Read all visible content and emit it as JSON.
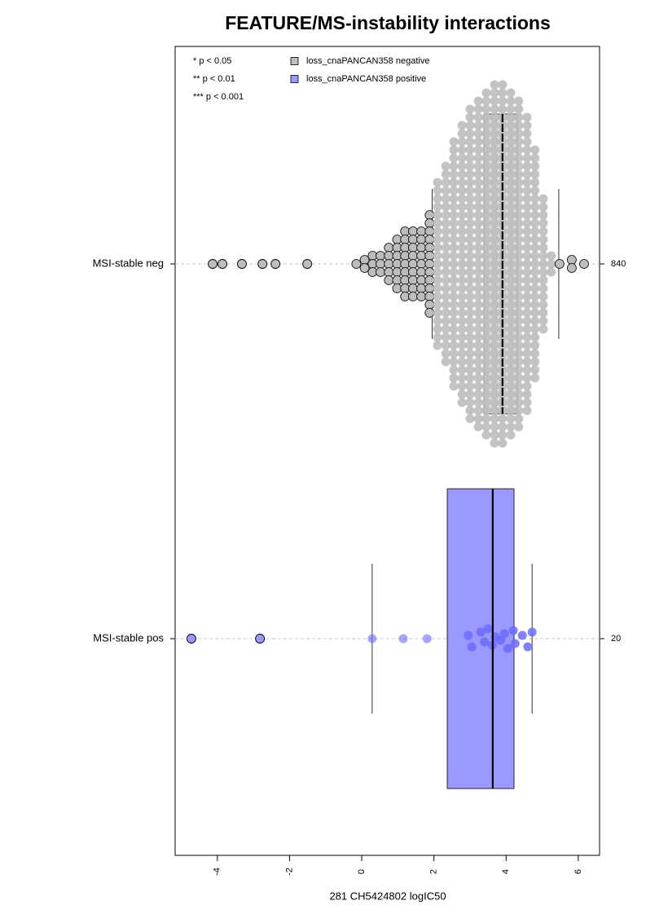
{
  "chart_data": {
    "type": "box",
    "title": "FEATURE/MS-instability interactions",
    "x_label": "281 CH5424802 logIC50",
    "categories": [
      "MSI-stable neg",
      "MSI-stable pos"
    ],
    "counts": [
      840,
      20
    ],
    "annotations": [
      "* p < 0.05",
      "** p < 0.01",
      "*** p < 0.001"
    ],
    "legend": "top-left",
    "xlim": [
      -5.17,
      6.59
    ],
    "xticks": [
      -4,
      -2,
      0,
      2,
      4,
      6
    ],
    "grid": true,
    "series": [
      {
        "name": "loss_cnaPANCAN358 negative",
        "color": "#bdbdbd",
        "box": {
          "whisker_low": 1.95,
          "q1": 3.39,
          "median": 3.9,
          "q3": 4.31,
          "whisker_high": 5.46
        },
        "outliers": [
          -4.13,
          -3.86,
          -3.32,
          -2.75,
          -2.39,
          -1.51
        ],
        "swarm": {
          "x": [
            -0.15,
            0.08,
            0.3,
            0.52,
            0.75,
            0.98,
            1.2,
            1.42,
            1.65,
            1.88,
            2.1,
            2.33,
            2.55,
            2.78,
            3.0,
            3.23,
            3.45,
            3.68,
            3.9,
            4.13,
            4.35,
            4.58,
            4.8,
            5.03,
            5.25,
            5.48,
            5.82,
            6.16
          ],
          "counts": [
            1,
            2,
            3,
            3,
            5,
            7,
            9,
            9,
            9,
            13,
            21,
            25,
            31,
            35,
            39,
            41,
            43,
            45,
            45,
            43,
            41,
            37,
            29,
            17,
            3,
            1,
            2,
            1
          ]
        }
      },
      {
        "name": "loss_cnaPANCAN358 positive",
        "color": "#9999ff",
        "box": {
          "whisker_low": 0.29,
          "q1": 2.37,
          "median": 3.63,
          "q3": 4.22,
          "whisker_high": 4.72
        },
        "outliers": [
          -4.72,
          -2.82
        ],
        "points": [
          0.29,
          1.15,
          1.81,
          2.95,
          3.05,
          3.3,
          3.4,
          3.5,
          3.62,
          3.7,
          3.85,
          3.95,
          4.05,
          4.2,
          4.25,
          4.45,
          4.6,
          4.72
        ]
      }
    ]
  }
}
